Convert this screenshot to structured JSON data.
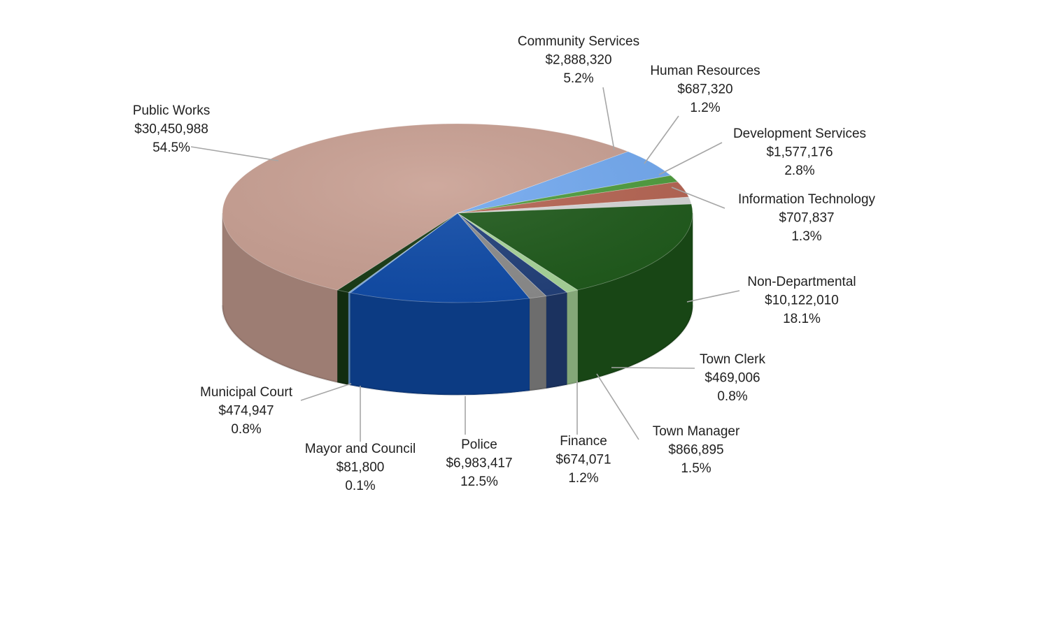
{
  "chart_data": {
    "type": "pie",
    "title": "",
    "slices": [
      {
        "name": "Public Works",
        "value": "$30,450,988",
        "percent": "54.5%",
        "amount": 30450988,
        "color": "#C9A093"
      },
      {
        "name": "Community Services",
        "value": "$2,888,320",
        "percent": "5.2%",
        "amount": 2888320,
        "color": "#72A9F0"
      },
      {
        "name": "Human Resources",
        "value": "$687,320",
        "percent": "1.2%",
        "amount": 687320,
        "color": "#4E9C3D"
      },
      {
        "name": "Development Services",
        "value": "$1,577,176",
        "percent": "2.8%",
        "amount": 1577176,
        "color": "#B56452"
      },
      {
        "name": "Information Technology",
        "value": "$707,837",
        "percent": "1.3%",
        "amount": 707837,
        "color": "#D6D6D6"
      },
      {
        "name": "Non-Departmental",
        "value": "$10,122,010",
        "percent": "18.1%",
        "amount": 10122010,
        "color": "#1F5A1B"
      },
      {
        "name": "Town Clerk",
        "value": "$469,006",
        "percent": "0.8%",
        "amount": 469006,
        "color": "#A9D69A"
      },
      {
        "name": "Town Manager",
        "value": "$866,895",
        "percent": "1.5%",
        "amount": 866895,
        "color": "#22407A"
      },
      {
        "name": "Finance",
        "value": "$674,071",
        "percent": "1.2%",
        "amount": 674071,
        "color": "#8C8C8C"
      },
      {
        "name": "Police",
        "value": "$6,983,417",
        "percent": "12.5%",
        "amount": 6983417,
        "color": "#0F4BA8"
      },
      {
        "name": "Mayor and Council",
        "value": "$81,800",
        "percent": "0.1%",
        "amount": 81800,
        "color": "#6FA4DC"
      },
      {
        "name": "Municipal Court",
        "value": "$474,947",
        "percent": "0.8%",
        "amount": 474947,
        "color": "#173A14"
      }
    ]
  }
}
